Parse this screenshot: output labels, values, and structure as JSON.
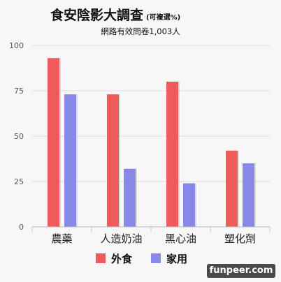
{
  "chart_data": {
    "type": "bar",
    "title": "食安陰影大調查",
    "title_note": "(可複選%)",
    "subtitle": "網路有效問卷1,003人",
    "categories": [
      "農藥",
      "人造奶油",
      "黑心油",
      "塑化劑"
    ],
    "series": [
      {
        "name": "外食",
        "color": "#ef5b5b",
        "values": [
          93,
          73,
          80,
          42
        ]
      },
      {
        "name": "家用",
        "color": "#8888e8",
        "values": [
          73,
          32,
          24,
          35
        ]
      }
    ],
    "ylim": [
      0,
      100
    ],
    "yticks": [
      0,
      25,
      50,
      75,
      100
    ],
    "grid": true,
    "legend_position": "bottom-center"
  },
  "watermark": "funpeer.com"
}
